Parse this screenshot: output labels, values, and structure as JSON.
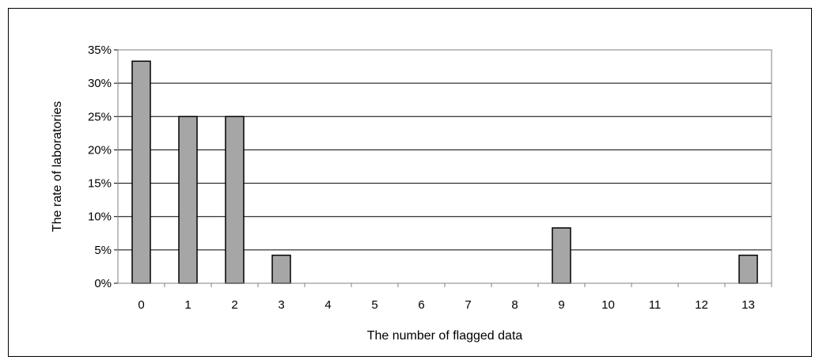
{
  "chart_data": {
    "type": "bar",
    "title": "",
    "xlabel": "The number of flagged data",
    "ylabel": "The rate of laboratories",
    "categories": [
      "0",
      "1",
      "2",
      "3",
      "4",
      "5",
      "6",
      "7",
      "8",
      "9",
      "10",
      "11",
      "12",
      "13"
    ],
    "values": [
      33.3,
      25.0,
      25.0,
      4.2,
      0,
      0,
      0,
      0,
      0,
      8.3,
      0,
      0,
      0,
      4.2
    ],
    "value_unit": "%",
    "ylim": [
      0,
      35
    ],
    "yticks": [
      "0%",
      "5%",
      "10%",
      "15%",
      "20%",
      "25%",
      "30%",
      "35%"
    ],
    "grid": true,
    "legend": "none",
    "colors": {
      "bar_fill": "#a6a6a6",
      "bar_stroke": "#000000",
      "grid": "#000000",
      "plot_border": "#808080"
    }
  }
}
